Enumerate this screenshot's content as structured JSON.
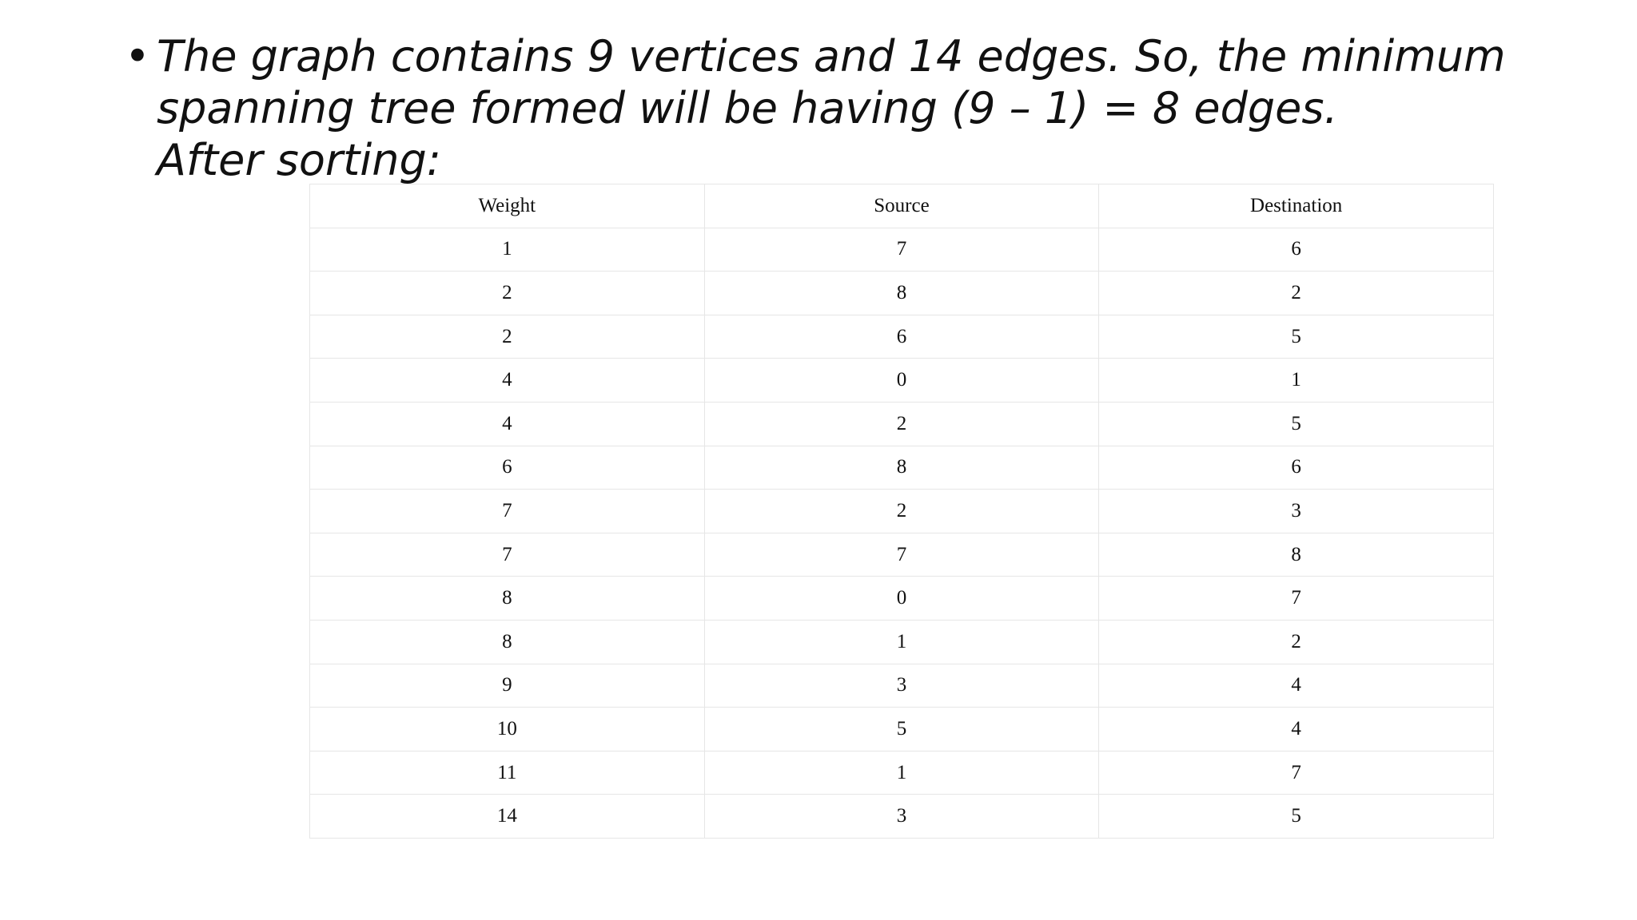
{
  "bullet": {
    "line1": "The graph contains 9 vertices and 14 edges. So, the minimum",
    "line2": "spanning tree formed will be having (9 – 1) = 8 edges.",
    "line3": "After sorting:"
  },
  "table": {
    "headers": [
      "Weight",
      "Source",
      "Destination"
    ],
    "rows": [
      [
        "1",
        "7",
        "6"
      ],
      [
        "2",
        "8",
        "2"
      ],
      [
        "2",
        "6",
        "5"
      ],
      [
        "4",
        "0",
        "1"
      ],
      [
        "4",
        "2",
        "5"
      ],
      [
        "6",
        "8",
        "6"
      ],
      [
        "7",
        "2",
        "3"
      ],
      [
        "7",
        "7",
        "8"
      ],
      [
        "8",
        "0",
        "7"
      ],
      [
        "8",
        "1",
        "2"
      ],
      [
        "9",
        "3",
        "4"
      ],
      [
        "10",
        "5",
        "4"
      ],
      [
        "11",
        "1",
        "7"
      ],
      [
        "14",
        "3",
        "5"
      ]
    ]
  }
}
